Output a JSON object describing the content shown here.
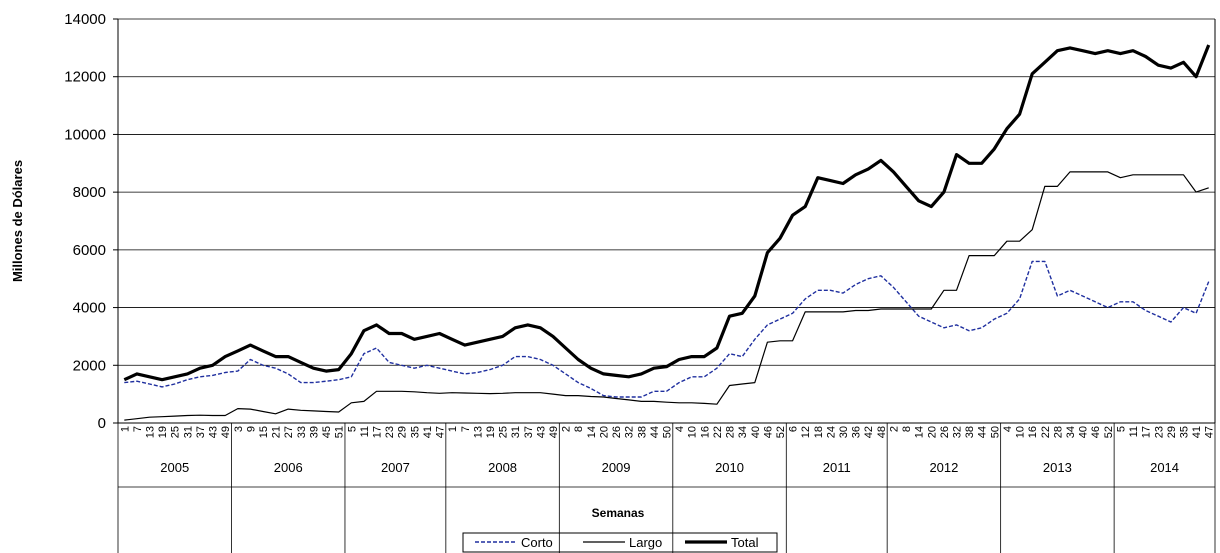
{
  "chart_data": {
    "type": "line",
    "ylabel": "Millones de Dólares",
    "xlabel": "Semanas",
    "groups": [
      {
        "label": "2005",
        "categories": [
          "1",
          "7",
          "13",
          "19",
          "25",
          "31",
          "37",
          "43",
          "49"
        ]
      },
      {
        "label": "2006",
        "categories": [
          "3",
          "9",
          "15",
          "21",
          "27",
          "33",
          "39",
          "45",
          "51"
        ]
      },
      {
        "label": "2007",
        "categories": [
          "5",
          "11",
          "17",
          "23",
          "29",
          "35",
          "41",
          "47"
        ]
      },
      {
        "label": "2008",
        "categories": [
          "1",
          "7",
          "13",
          "19",
          "25",
          "31",
          "37",
          "43",
          "49"
        ]
      },
      {
        "label": "2009",
        "categories": [
          "2",
          "8",
          "14",
          "20",
          "26",
          "32",
          "38",
          "44",
          "50"
        ]
      },
      {
        "label": "2010",
        "categories": [
          "4",
          "10",
          "16",
          "22",
          "28",
          "34",
          "40",
          "46",
          "52"
        ]
      },
      {
        "label": "2011",
        "categories": [
          "6",
          "12",
          "18",
          "24",
          "30",
          "36",
          "42",
          "48"
        ]
      },
      {
        "label": "2012",
        "categories": [
          "2",
          "8",
          "14",
          "20",
          "26",
          "32",
          "38",
          "44",
          "50"
        ]
      },
      {
        "label": "2013",
        "categories": [
          "4",
          "10",
          "16",
          "22",
          "28",
          "34",
          "40",
          "46",
          "52"
        ]
      },
      {
        "label": "2014",
        "categories": [
          "5",
          "11",
          "17",
          "23",
          "29",
          "35",
          "41",
          "47"
        ]
      }
    ],
    "series": [
      {
        "name": "Corto",
        "color": "#1f2f9f",
        "style": "dashed",
        "values": [
          1400,
          1450,
          1350,
          1250,
          1350,
          1500,
          1600,
          1650,
          1750,
          1800,
          2200,
          2000,
          1900,
          1700,
          1400,
          1400,
          1450,
          1500,
          1600,
          2400,
          2600,
          2100,
          2000,
          1900,
          2000,
          1900,
          1800,
          1700,
          1750,
          1850,
          2000,
          2300,
          2300,
          2200,
          2000,
          1700,
          1400,
          1200,
          950,
          900,
          900,
          900,
          1100,
          1100,
          1400,
          1600,
          1600,
          1900,
          2400,
          2300,
          2900,
          3400,
          3600,
          3800,
          4300,
          4600,
          4600,
          4500,
          4800,
          5000,
          5100,
          4700,
          4200,
          3700,
          3500,
          3300,
          3400,
          3200,
          3300,
          3600,
          3800,
          4300,
          5600,
          5600,
          4400,
          4600,
          4400,
          4200,
          4000,
          4200,
          4200,
          3900,
          3700,
          3500,
          4000,
          3800,
          4900
        ]
      },
      {
        "name": "Largo",
        "color": "#000000",
        "style": "solid",
        "values": [
          100,
          150,
          200,
          220,
          240,
          260,
          270,
          260,
          260,
          500,
          480,
          400,
          320,
          480,
          440,
          420,
          400,
          380,
          700,
          750,
          1100,
          1100,
          1100,
          1080,
          1050,
          1030,
          1050,
          1040,
          1030,
          1020,
          1030,
          1050,
          1050,
          1050,
          1000,
          950,
          950,
          920,
          900,
          850,
          800,
          750,
          750,
          720,
          700,
          700,
          680,
          650,
          1300,
          1350,
          1400,
          2800,
          2850,
          2850,
          3850,
          3850,
          3850,
          3850,
          3900,
          3900,
          3950,
          3950,
          3950,
          3950,
          3950,
          4600,
          4600,
          5800,
          5800,
          5800,
          6300,
          6300,
          6700,
          8200,
          8200,
          8700,
          8700,
          8700,
          8700,
          8500,
          8600,
          8600,
          8600,
          8600,
          8600,
          8000,
          8150
        ]
      },
      {
        "name": "Total",
        "color": "#000000",
        "style": "bold",
        "values": [
          1500,
          1700,
          1600,
          1500,
          1600,
          1700,
          1900,
          2000,
          2300,
          2500,
          2700,
          2500,
          2300,
          2300,
          2100,
          1900,
          1800,
          1850,
          2400,
          3200,
          3400,
          3100,
          3100,
          2900,
          3000,
          3100,
          2900,
          2700,
          2800,
          2900,
          3000,
          3300,
          3400,
          3300,
          3000,
          2600,
          2200,
          1900,
          1700,
          1650,
          1600,
          1700,
          1900,
          1950,
          2200,
          2300,
          2300,
          2600,
          3700,
          3800,
          4400,
          5900,
          6400,
          7200,
          7500,
          8500,
          8400,
          8300,
          8600,
          8800,
          9100,
          8700,
          8200,
          7700,
          7500,
          8000,
          9300,
          9000,
          9000,
          9500,
          10200,
          10700,
          12100,
          12500,
          12900,
          13000,
          12900,
          12800,
          12900,
          12800,
          12900,
          12700,
          12400,
          12300,
          12500,
          12000,
          13100
        ]
      }
    ],
    "ylim": [
      0,
      14000
    ],
    "yticks": [
      0,
      2000,
      4000,
      6000,
      8000,
      10000,
      12000,
      14000
    ],
    "grid": true
  }
}
